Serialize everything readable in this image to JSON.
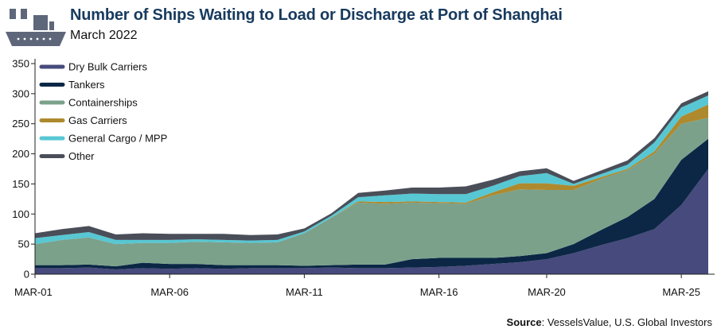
{
  "header": {
    "title": "Number of Ships Waiting to Load or Discharge at Port of Shanghai",
    "subtitle": "March 2022",
    "logo_icon": "cargo-ship-icon"
  },
  "source": {
    "label": "Source",
    "text": ": VesselsValue, U.S. Global Investors"
  },
  "chart_data": {
    "type": "area",
    "stacked": true,
    "title": "Number of Ships Waiting to Load or Discharge at Port of Shanghai",
    "subtitle": "March 2022",
    "x": [
      "MAR-01",
      "MAR-02",
      "MAR-03",
      "MAR-04",
      "MAR-05",
      "MAR-06",
      "MAR-07",
      "MAR-08",
      "MAR-09",
      "MAR-10",
      "MAR-11",
      "MAR-12",
      "MAR-13",
      "MAR-14",
      "MAR-15",
      "MAR-16",
      "MAR-17",
      "MAR-18",
      "MAR-19",
      "MAR-20",
      "MAR-21",
      "MAR-22",
      "MAR-23",
      "MAR-24",
      "MAR-25",
      "MAR-26"
    ],
    "xticks": [
      "MAR-01",
      "MAR-06",
      "MAR-11",
      "MAR-16",
      "MAR-20",
      "MAR-25"
    ],
    "yticks": [
      0,
      50,
      100,
      150,
      200,
      250,
      300,
      350
    ],
    "ylim": [
      0,
      350
    ],
    "grid": false,
    "legend_position": "top-left",
    "series": [
      {
        "name": "Dry Bulk Carriers",
        "color": "#474a7c",
        "values": [
          10,
          10,
          11,
          8,
          10,
          9,
          10,
          9,
          10,
          10,
          10,
          11,
          10,
          10,
          11,
          12,
          14,
          17,
          20,
          25,
          35,
          48,
          60,
          75,
          115,
          175
        ]
      },
      {
        "name": "Tankers",
        "color": "#0b2745",
        "values": [
          5,
          5,
          5,
          5,
          9,
          8,
          7,
          6,
          5,
          5,
          4,
          4,
          6,
          6,
          14,
          15,
          13,
          10,
          10,
          10,
          15,
          25,
          35,
          50,
          75,
          50
        ]
      },
      {
        "name": "Containerships",
        "color": "#7ba18b",
        "values": [
          35,
          42,
          45,
          37,
          33,
          35,
          37,
          38,
          37,
          38,
          54,
          79,
          103,
          101,
          94,
          91,
          90,
          104,
          111,
          105,
          90,
          85,
          78,
          75,
          60,
          35
        ]
      },
      {
        "name": "Gas Carriers",
        "color": "#ae8a2e",
        "values": [
          0,
          0,
          0,
          0,
          0,
          0,
          0,
          0,
          0,
          0,
          0,
          0,
          2,
          3,
          2,
          2,
          2,
          5,
          10,
          11,
          7,
          3,
          2,
          4,
          12,
          22
        ]
      },
      {
        "name": "General Cargo / MPP",
        "color": "#57c7d3",
        "values": [
          10,
          8,
          9,
          7,
          5,
          5,
          4,
          4,
          4,
          4,
          3,
          3,
          7,
          11,
          13,
          13,
          14,
          11,
          12,
          17,
          3,
          5,
          7,
          15,
          15,
          15
        ]
      },
      {
        "name": "Other",
        "color": "#4a4e58",
        "values": [
          8,
          10,
          10,
          9,
          11,
          10,
          9,
          10,
          9,
          9,
          5,
          4,
          7,
          8,
          10,
          11,
          13,
          10,
          8,
          8,
          5,
          6,
          7,
          7,
          7,
          7
        ]
      }
    ]
  }
}
